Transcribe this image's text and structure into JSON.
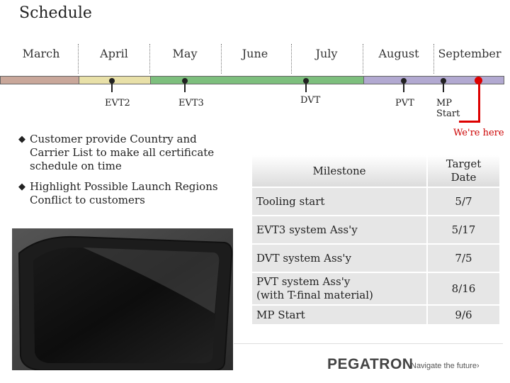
{
  "title": "Schedule",
  "months": [
    "March",
    "April",
    "May",
    "June",
    "July",
    "August",
    "September"
  ],
  "milestones_timeline": [
    {
      "label": "EVT2"
    },
    {
      "label": "EVT3"
    },
    {
      "label": "DVT"
    },
    {
      "label": "PVT"
    },
    {
      "label": "MP\nStart"
    }
  ],
  "current_marker": {
    "label": "We're here",
    "color": "#dd0000"
  },
  "timeline_colors": {
    "march": "#c9a79a",
    "april": "#e8e0a8",
    "may_july": "#7dbf7d",
    "august_sept": "#b2a9d1"
  },
  "bullets": [
    "Customer provide Country and Carrier List to make all certificate schedule on time",
    "Highlight Possible Launch Regions Conflict to customers"
  ],
  "bullet_icon": "diamond-bullet-icon",
  "table": {
    "headers": [
      "Milestone",
      "Target\nDate"
    ],
    "rows": [
      {
        "milestone": "Tooling start",
        "date": "5/7"
      },
      {
        "milestone": "EVT3 system Ass'y",
        "date": "5/17"
      },
      {
        "milestone": "DVT system Ass'y",
        "date": "7/5"
      },
      {
        "milestone": "PVT system Ass'y\n(with T-final material)",
        "date": "8/16"
      },
      {
        "milestone": "MP Start",
        "date": "9/6"
      }
    ]
  },
  "footer": {
    "logo": "PEGATRON",
    "tagline": "Navigate the future"
  }
}
